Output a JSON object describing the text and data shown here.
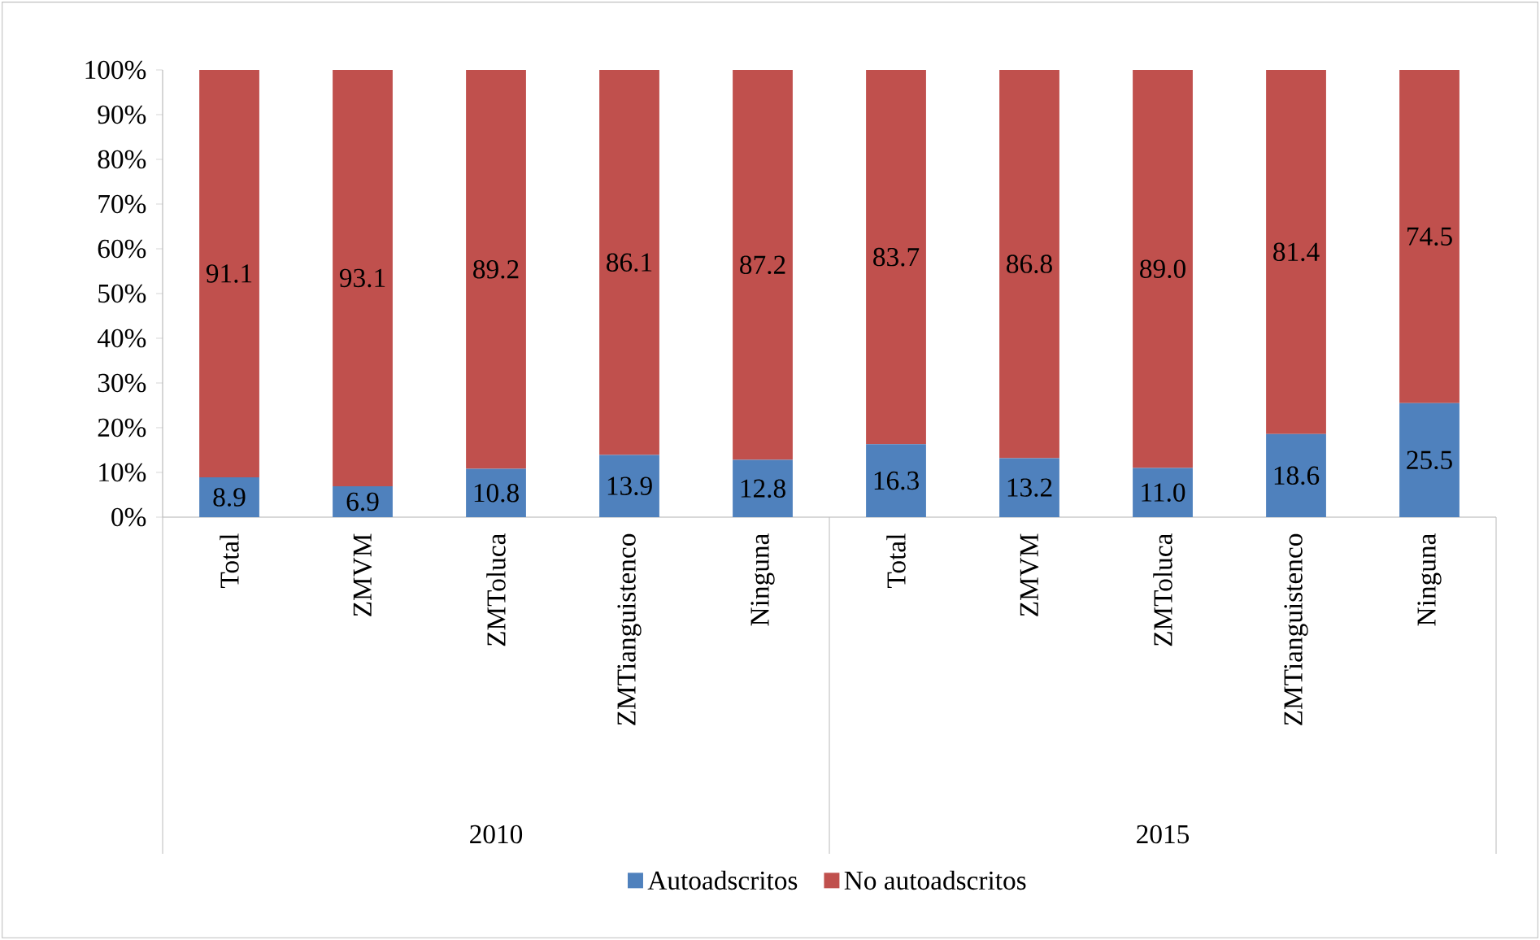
{
  "chart_data": {
    "type": "bar",
    "stacked": true,
    "categories": [
      "Total",
      "ZMVM",
      "ZMToluca",
      "ZMTianguistenco",
      "Ninguna",
      "Total",
      "ZMVM",
      "ZMToluca",
      "ZMTianguistenco",
      "Ninguna"
    ],
    "series": [
      {
        "name": "Autoadscritos",
        "color": "#4f81bd",
        "values": [
          8.9,
          6.9,
          10.8,
          13.9,
          12.8,
          16.3,
          13.2,
          11.0,
          18.6,
          25.5
        ],
        "value_labels": [
          "8.9",
          "6.9",
          "10.8",
          "13.9",
          "12.8",
          "16.3",
          "13.2",
          "11.0",
          "18.6",
          "25.5"
        ]
      },
      {
        "name": "No autoadscritos",
        "color": "#c0504d",
        "values": [
          91.1,
          93.1,
          89.2,
          86.1,
          87.2,
          83.7,
          86.8,
          89.0,
          81.4,
          74.5
        ],
        "value_labels": [
          "91.1",
          "93.1",
          "89.2",
          "86.1",
          "87.2",
          "83.7",
          "86.8",
          "89.0",
          "81.4",
          "74.5"
        ]
      }
    ],
    "ylim": [
      0,
      100
    ],
    "yticks": [
      {
        "value": 0,
        "label": "0%"
      },
      {
        "value": 10,
        "label": "10%"
      },
      {
        "value": 20,
        "label": "20%"
      },
      {
        "value": 30,
        "label": "30%"
      },
      {
        "value": 40,
        "label": "40%"
      },
      {
        "value": 50,
        "label": "50%"
      },
      {
        "value": 60,
        "label": "60%"
      },
      {
        "value": 70,
        "label": "70%"
      },
      {
        "value": 80,
        "label": "80%"
      },
      {
        "value": 90,
        "label": "90%"
      },
      {
        "value": 100,
        "label": "100%"
      }
    ],
    "legend": "bottom",
    "annotations": [
      "2010",
      "2015"
    ]
  }
}
